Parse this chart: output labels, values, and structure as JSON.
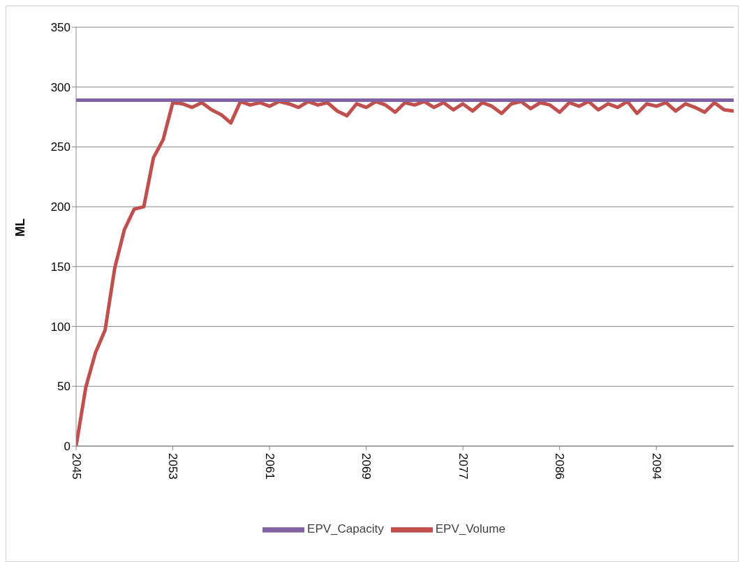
{
  "chart_data": {
    "type": "line",
    "ylabel": "ML",
    "categories": [
      "2045",
      null,
      null,
      null,
      null,
      null,
      null,
      null,
      null,
      null,
      "2053",
      null,
      null,
      null,
      null,
      null,
      null,
      null,
      null,
      null,
      "2061",
      null,
      null,
      null,
      null,
      null,
      null,
      null,
      null,
      null,
      "2069",
      null,
      null,
      null,
      null,
      null,
      null,
      null,
      null,
      null,
      "2077",
      null,
      null,
      null,
      null,
      null,
      null,
      null,
      null,
      null,
      "2086",
      null,
      null,
      null,
      null,
      null,
      null,
      null,
      null,
      null,
      "2094",
      null,
      null,
      null,
      null,
      null,
      null,
      null,
      null
    ],
    "series": [
      {
        "name": "EPV_Volume",
        "color": "#c0504d",
        "values": [
          0,
          49,
          78,
          97,
          149,
          181,
          198,
          200,
          241,
          256,
          287,
          286,
          283,
          287,
          281,
          277,
          270,
          288,
          285,
          287,
          284,
          288,
          286,
          283,
          288,
          285,
          287,
          280,
          276,
          286,
          283,
          288,
          285,
          279,
          287,
          285,
          288,
          283,
          287,
          281,
          286,
          280,
          287,
          284,
          278,
          286,
          288,
          282,
          287,
          285,
          279,
          287,
          284,
          288,
          281,
          286,
          283,
          288,
          278,
          286,
          284,
          287,
          280,
          286,
          283,
          279,
          287,
          281,
          280
        ]
      },
      {
        "name": "EPV_Capacity",
        "color": "#8064a2",
        "values": [
          289,
          289,
          289,
          289,
          289,
          289,
          289,
          289,
          289,
          289,
          289,
          289,
          289,
          289,
          289,
          289,
          289,
          289,
          289,
          289,
          289,
          289,
          289,
          289,
          289,
          289,
          289,
          289,
          289,
          289,
          289,
          289,
          289,
          289,
          289,
          289,
          289,
          289,
          289,
          289,
          289,
          289,
          289,
          289,
          289,
          289,
          289,
          289,
          289,
          289,
          289,
          289,
          289,
          289,
          289,
          289,
          289,
          289,
          289,
          289,
          289,
          289,
          289,
          289,
          289,
          289,
          289,
          289,
          289
        ]
      }
    ],
    "ylim": [
      0,
      350
    ],
    "yticks": [
      0,
      50,
      100,
      150,
      200,
      250,
      300,
      350
    ],
    "grid": "y",
    "legend": "bottom",
    "marker": "none",
    "line_style": "solid"
  }
}
